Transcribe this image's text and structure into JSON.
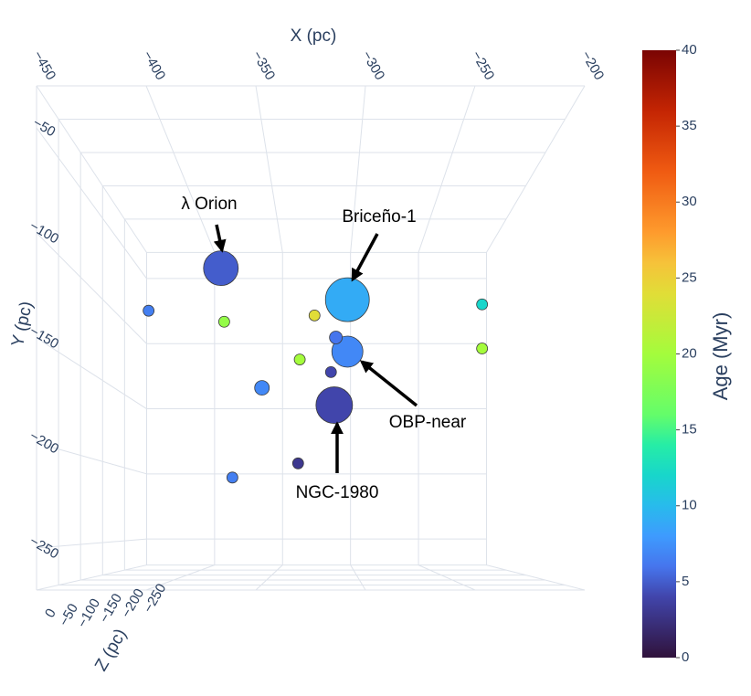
{
  "chart_data": {
    "type": "scatter3d",
    "x": [
      -382,
      -305,
      -305,
      -313,
      -426,
      -380,
      -325,
      -223,
      -223,
      -312,
      -334,
      -315,
      -357,
      -335,
      -375
    ],
    "y": [
      -76,
      -96,
      -129,
      -163,
      -103,
      -110,
      -106,
      -99,
      -127,
      -120,
      -134,
      -142,
      -152,
      -200,
      -209
    ],
    "z": [
      -165,
      -165,
      -165,
      -165,
      -165,
      -165,
      -165,
      -165,
      -165,
      -165,
      -165,
      -165,
      -165,
      -165,
      -165
    ],
    "age": [
      5,
      9,
      7,
      4,
      6.5,
      19,
      24,
      12,
      20,
      6,
      20,
      4,
      7,
      3,
      6.5
    ],
    "marker_size": [
      38,
      48,
      34,
      40,
      12,
      12,
      12,
      12,
      12,
      14,
      12,
      12,
      16,
      12,
      12
    ],
    "colorscale": "turbo",
    "cmin": 0,
    "cmax": 40,
    "colorbar_title": "Age (Myr)",
    "colorbar_ticks": [
      0,
      5,
      10,
      15,
      20,
      25,
      30,
      35,
      40
    ],
    "xaxis_title": "X (pc)",
    "yaxis_title": "Y (pc)",
    "zaxis_title": "Z (pc)",
    "xlim": [
      -450,
      -200
    ],
    "ylim": [
      -270,
      -30
    ],
    "zlim": [
      -250,
      0
    ],
    "xticks": [
      {
        "value": -450,
        "label": "−450"
      },
      {
        "value": -400,
        "label": "−400"
      },
      {
        "value": -350,
        "label": "−350"
      },
      {
        "value": -300,
        "label": "−300"
      },
      {
        "value": -250,
        "label": "−250"
      },
      {
        "value": -200,
        "label": "−200"
      }
    ],
    "yticks": [
      {
        "value": -250,
        "label": "−250"
      },
      {
        "value": -200,
        "label": "−200"
      },
      {
        "value": -150,
        "label": "−150"
      },
      {
        "value": -100,
        "label": "−100"
      },
      {
        "value": -50,
        "label": "−50"
      }
    ],
    "zticks": [
      0,
      {
        "value": -50,
        "label": "−50"
      },
      {
        "value": -100,
        "label": "−100"
      },
      {
        "value": -150,
        "label": "−150"
      },
      {
        "value": -200,
        "label": "−200"
      },
      {
        "value": -250,
        "label": "−250"
      }
    ],
    "grid": true,
    "annotations": [
      {
        "text": "λ Orion"
      },
      {
        "text": "Briceño-1"
      },
      {
        "text": "OBP-near"
      },
      {
        "text": "NGC-1980"
      }
    ]
  }
}
